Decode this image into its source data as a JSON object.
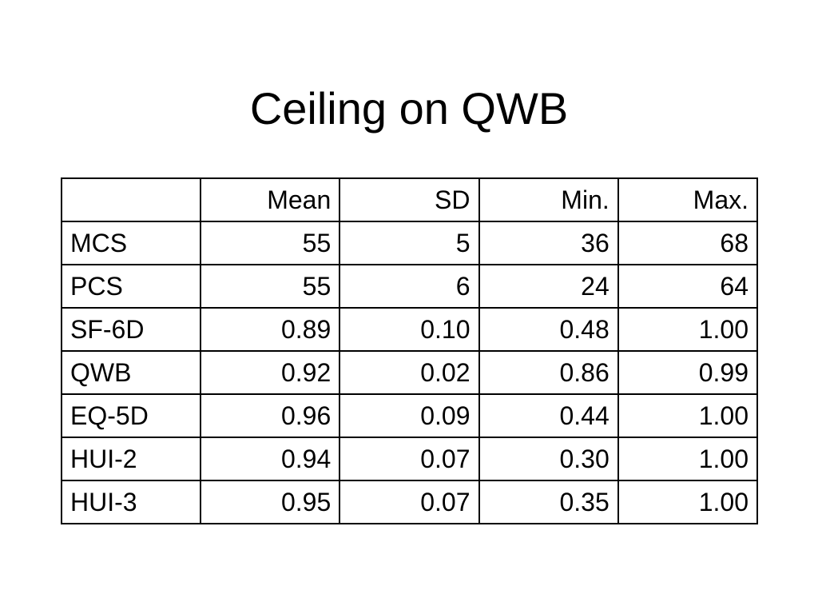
{
  "title": "Ceiling on QWB",
  "table": {
    "header": [
      "Mean",
      "SD",
      "Min.",
      "Max."
    ],
    "rows": [
      [
        "MCS",
        "55",
        "5",
        "36",
        "68"
      ],
      [
        "PCS",
        "55",
        "6",
        "24",
        "64"
      ],
      [
        "SF-6D",
        "0.89",
        "0.10",
        "0.48",
        "1.00"
      ],
      [
        "QWB",
        "0.92",
        "0.02",
        "0.86",
        "0.99"
      ],
      [
        "EQ-5D",
        "0.96",
        "0.09",
        "0.44",
        "1.00"
      ],
      [
        "HUI-2",
        "0.94",
        "0.07",
        "0.30",
        "1.00"
      ],
      [
        "HUI-3",
        "0.95",
        "0.07",
        "0.35",
        "1.00"
      ]
    ]
  }
}
